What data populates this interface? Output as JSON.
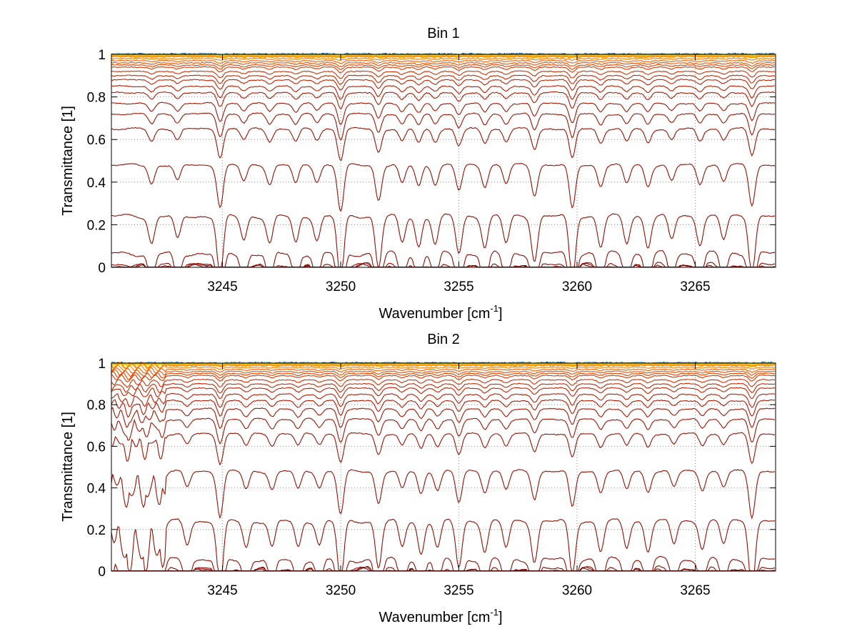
{
  "chart_data": [
    {
      "type": "line",
      "title": "Bin 1",
      "xlabel": "Wavenumber [cm",
      "xlabel_sup": "-1",
      "xlabel_end": "]",
      "ylabel": "Transmittance [1]",
      "xlim": [
        3240.3,
        3268.4
      ],
      "ylim": [
        0,
        1
      ],
      "grid": true,
      "x_ticks": [
        3245,
        3250,
        3255,
        3260,
        3265
      ],
      "x_tick_labels": [
        "3245",
        "3250",
        "3255",
        "3260",
        "3265"
      ],
      "y_ticks": [
        0,
        0.2,
        0.4,
        0.6,
        0.8,
        1
      ],
      "y_tick_labels": [
        "0",
        "0.2",
        "0.4",
        "0.6",
        "0.8",
        "1"
      ],
      "line_dips": [
        {
          "x": 3242.0,
          "strength": 0.4
        },
        {
          "x": 3243.1,
          "strength": 0.35
        },
        {
          "x": 3244.9,
          "strength": 0.9
        },
        {
          "x": 3245.9,
          "strength": 0.35
        },
        {
          "x": 3247.0,
          "strength": 0.4
        },
        {
          "x": 3248.1,
          "strength": 0.4
        },
        {
          "x": 3249.0,
          "strength": 0.35
        },
        {
          "x": 3250.0,
          "strength": 1.0
        },
        {
          "x": 3251.6,
          "strength": 0.75
        },
        {
          "x": 3252.6,
          "strength": 0.4
        },
        {
          "x": 3253.3,
          "strength": 0.45
        },
        {
          "x": 3254.0,
          "strength": 0.4
        },
        {
          "x": 3255.0,
          "strength": 0.55
        },
        {
          "x": 3256.1,
          "strength": 0.45
        },
        {
          "x": 3257.0,
          "strength": 0.4
        },
        {
          "x": 3258.2,
          "strength": 0.65
        },
        {
          "x": 3259.8,
          "strength": 0.95
        },
        {
          "x": 3261.0,
          "strength": 0.45
        },
        {
          "x": 3262.1,
          "strength": 0.4
        },
        {
          "x": 3263.0,
          "strength": 0.45
        },
        {
          "x": 3264.0,
          "strength": 0.35
        },
        {
          "x": 3265.2,
          "strength": 0.4
        },
        {
          "x": 3266.2,
          "strength": 0.35
        },
        {
          "x": 3267.4,
          "strength": 0.85
        }
      ],
      "series_baselines": [
        1.0,
        0.999,
        0.998,
        0.997,
        0.995,
        0.99,
        0.98,
        0.97,
        0.96,
        0.95,
        0.94,
        0.92,
        0.9,
        0.88,
        0.85,
        0.82,
        0.77,
        0.72,
        0.65,
        0.48,
        0.24,
        0.065,
        0.012,
        0.006,
        0.003
      ],
      "series_colors": [
        "#003f9f",
        "#2a9df4",
        "#6dd06d",
        "#c8e042",
        "#f5c400",
        "#ff9800",
        "#ff7a00",
        "#ff6000",
        "#f25000",
        "#e84400",
        "#dd3a00",
        "#d43000",
        "#cc2800",
        "#c42200",
        "#bb1c00",
        "#b31800",
        "#aa1400",
        "#a51200",
        "#a01000",
        "#9c0e00",
        "#980c00",
        "#930a00",
        "#8f0800",
        "#8a0600",
        "#860400"
      ]
    },
    {
      "type": "line",
      "title": "Bin 2",
      "xlabel": "Wavenumber [cm",
      "xlabel_sup": "-1",
      "xlabel_end": "]",
      "ylabel": "Transmittance [1]",
      "xlim": [
        3240.3,
        3268.4
      ],
      "ylim": [
        0,
        1
      ],
      "grid": true,
      "x_ticks": [
        3245,
        3250,
        3255,
        3260,
        3265
      ],
      "x_tick_labels": [
        "3245",
        "3250",
        "3255",
        "3260",
        "3265"
      ],
      "y_ticks": [
        0,
        0.2,
        0.4,
        0.6,
        0.8,
        1
      ],
      "y_tick_labels": [
        "0",
        "0.2",
        "0.4",
        "0.6",
        "0.8",
        "1"
      ],
      "line_dips": [
        {
          "x": 3241.0,
          "strength": 0.6
        },
        {
          "x": 3241.7,
          "strength": 0.5
        },
        {
          "x": 3242.4,
          "strength": 0.45
        },
        {
          "x": 3243.5,
          "strength": 0.35
        },
        {
          "x": 3244.9,
          "strength": 1.0
        },
        {
          "x": 3246.0,
          "strength": 0.4
        },
        {
          "x": 3247.1,
          "strength": 0.4
        },
        {
          "x": 3248.2,
          "strength": 0.4
        },
        {
          "x": 3249.1,
          "strength": 0.35
        },
        {
          "x": 3250.0,
          "strength": 0.95
        },
        {
          "x": 3251.6,
          "strength": 0.7
        },
        {
          "x": 3252.6,
          "strength": 0.4
        },
        {
          "x": 3253.4,
          "strength": 0.5
        },
        {
          "x": 3254.1,
          "strength": 0.4
        },
        {
          "x": 3255.0,
          "strength": 0.7
        },
        {
          "x": 3256.1,
          "strength": 0.45
        },
        {
          "x": 3257.0,
          "strength": 0.4
        },
        {
          "x": 3258.2,
          "strength": 0.6
        },
        {
          "x": 3259.8,
          "strength": 0.8
        },
        {
          "x": 3261.0,
          "strength": 0.45
        },
        {
          "x": 3262.1,
          "strength": 0.4
        },
        {
          "x": 3263.0,
          "strength": 0.45
        },
        {
          "x": 3264.1,
          "strength": 0.35
        },
        {
          "x": 3265.3,
          "strength": 0.4
        },
        {
          "x": 3266.2,
          "strength": 0.35
        },
        {
          "x": 3267.4,
          "strength": 1.0
        }
      ],
      "series_baselines": [
        1.0,
        0.999,
        0.998,
        0.997,
        0.995,
        0.99,
        0.98,
        0.97,
        0.96,
        0.95,
        0.94,
        0.92,
        0.9,
        0.88,
        0.85,
        0.82,
        0.78,
        0.73,
        0.66,
        0.48,
        0.24,
        0.055,
        0.012,
        0.006,
        0.003
      ],
      "series_colors": [
        "#003f9f",
        "#2a9df4",
        "#6dd06d",
        "#c8e042",
        "#f5c400",
        "#ff9800",
        "#ff7a00",
        "#ff6000",
        "#f25000",
        "#e84400",
        "#dd3a00",
        "#d43000",
        "#cc2800",
        "#c42200",
        "#bb1c00",
        "#b31800",
        "#aa1400",
        "#a51200",
        "#a01000",
        "#9c0e00",
        "#980c00",
        "#930a00",
        "#8f0800",
        "#8a0600",
        "#860400"
      ]
    }
  ]
}
